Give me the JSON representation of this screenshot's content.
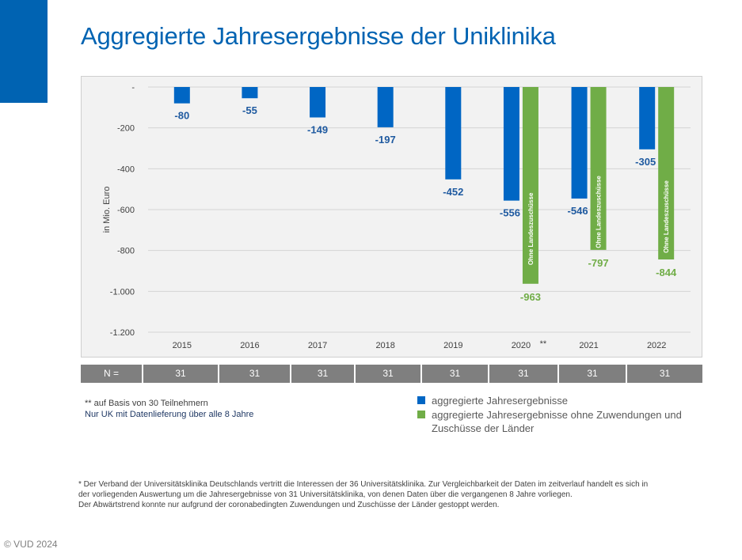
{
  "colors": {
    "accent": "#0063b2",
    "title": "#0063b2",
    "series1": "#0066c4",
    "series2": "#70ad47",
    "series1_label": "#1f5aa0",
    "series2_label": "#70ad47",
    "n_row": "#7f7f7f"
  },
  "header": {
    "title": "Aggregierte Jahresergebnisse der Uniklinika"
  },
  "chart_data": {
    "type": "bar",
    "title": "",
    "ylabel": "in Mio. Euro",
    "xlabel": "",
    "ylim": [
      -1200,
      0
    ],
    "y_ticks": [
      0,
      -200,
      -400,
      -600,
      -800,
      -1000,
      -1200
    ],
    "y_tick_labels": [
      "-",
      "-200",
      "-400",
      "-600",
      "-800",
      "-1.000",
      "-1.200"
    ],
    "grid": true,
    "categories": [
      "2015",
      "2016",
      "2017",
      "2018",
      "2019",
      "2020",
      "2021",
      "2022"
    ],
    "category_annotations": {
      "2020": "**"
    },
    "series": [
      {
        "name": "aggregierte Jahresergebnisse",
        "values": [
          -80,
          -55,
          -149,
          -197,
          -452,
          -556,
          -546,
          -305
        ]
      },
      {
        "name": "aggregierte Jahresergebnisse ohne Zuwendungen und Zuschüsse der Länder",
        "values": [
          null,
          null,
          null,
          null,
          null,
          -963,
          -797,
          -844
        ],
        "bar_text": "Ohne Landeszuschüsse"
      }
    ]
  },
  "n_row": {
    "label": "N =",
    "values": [
      "31",
      "31",
      "31",
      "31",
      "31",
      "31",
      "31",
      "31"
    ]
  },
  "notes": {
    "asterisk": "** auf Basis von 30 Teilnehmern",
    "uk": "Nur UK mit Datenlieferung über alle 8 Jahre"
  },
  "legend": [
    {
      "label": "aggregierte Jahresergebnisse"
    },
    {
      "label": "aggregierte Jahresergebnisse ohne Zuwendungen und Zuschüsse der Länder"
    }
  ],
  "footnote": {
    "line1": "*  Der Verband der Universitätsklinika Deutschlands vertritt die Interessen der 36 Universitätsklinika. Zur Vergleichbarkeit der Daten im zeitverlauf handelt es sich in",
    "line2": "der vorliegenden Auswertung um die Jahresergebnisse von 31 Universitätsklinika, von denen Daten über die vergangenen 8 Jahre vorliegen.",
    "line3": "Der Abwärtstrend konnte nur aufgrund der coronabedingten Zuwendungen und Zuschüsse der Länder gestoppt werden."
  },
  "copyright": "© VUD 2024"
}
